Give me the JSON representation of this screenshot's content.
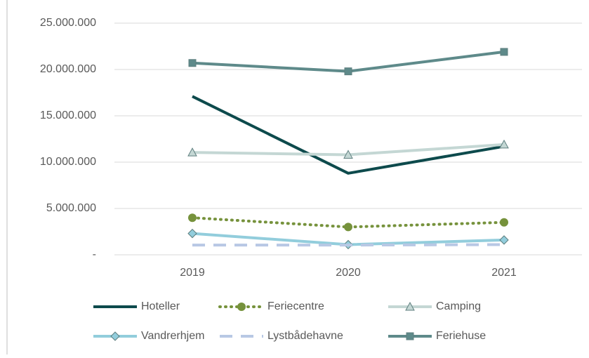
{
  "chart_data": {
    "type": "line",
    "categories": [
      "2019",
      "2020",
      "2021"
    ],
    "series": [
      {
        "name": "Hoteller",
        "color": "#0d4a4c",
        "marker": "none",
        "dash": "solid",
        "values": [
          17100000,
          8800000,
          11700000
        ]
      },
      {
        "name": "Feriecentre",
        "color": "#76923c",
        "marker": "circle",
        "dash": "dotted",
        "values": [
          4000000,
          3000000,
          3500000
        ]
      },
      {
        "name": "Camping",
        "color": "#c4d7d4",
        "marker": "triangle",
        "dash": "solid",
        "values": [
          11050000,
          10800000,
          11900000
        ]
      },
      {
        "name": "Vandrerhjem",
        "color": "#92cddc",
        "marker": "diamond",
        "dash": "solid",
        "values": [
          2300000,
          1100000,
          1600000
        ]
      },
      {
        "name": "Lystbådehavne",
        "color": "#b8c8e4",
        "marker": "none",
        "dash": "dashed",
        "values": [
          1050000,
          1050000,
          1100000
        ]
      },
      {
        "name": "Feriehuse",
        "color": "#5e8a8a",
        "marker": "square",
        "dash": "solid",
        "values": [
          20700000,
          19800000,
          21900000
        ]
      }
    ],
    "ylim": [
      0,
      25000000
    ],
    "yticks": [
      {
        "value": 0,
        "label": "-"
      },
      {
        "value": 5000000,
        "label": "5.000.000"
      },
      {
        "value": 10000000,
        "label": "10.000.000"
      },
      {
        "value": 15000000,
        "label": "15.000.000"
      },
      {
        "value": 20000000,
        "label": "20.000.000"
      },
      {
        "value": 25000000,
        "label": "25.000.000"
      }
    ],
    "grid": true,
    "legend": "bottom"
  }
}
